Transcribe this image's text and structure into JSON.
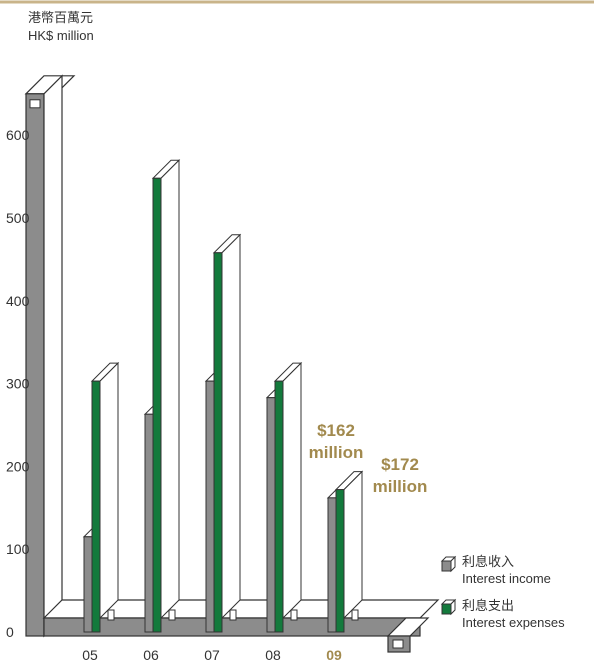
{
  "colors": {
    "income": "#8c8c8c",
    "expenses": "#137a3c",
    "highlight": "#a28a4e",
    "topline": "#c9b48a",
    "axis": "#333333"
  },
  "chart_data": {
    "type": "bar",
    "unit_label_zh": "港幣百萬元",
    "unit_label_en": "HK$ million",
    "categories": [
      "05",
      "06",
      "07",
      "08",
      "09"
    ],
    "highlight_category": "09",
    "ylim": [
      0,
      650
    ],
    "yticks": [
      0,
      100,
      200,
      300,
      400,
      500,
      600
    ],
    "series": [
      {
        "name_zh": "利息收入",
        "name_en": "Interest income",
        "values": [
          115,
          263,
          303,
          283,
          162
        ]
      },
      {
        "name_zh": "利息支出",
        "name_en": "Interest expenses",
        "values": [
          303,
          548,
          458,
          303,
          172
        ]
      }
    ],
    "annotations": [
      {
        "value_text": "$162",
        "unit_text": "million"
      },
      {
        "value_text": "$172",
        "unit_text": "million"
      }
    ],
    "legend_position": "bottom-right",
    "grid": false
  }
}
